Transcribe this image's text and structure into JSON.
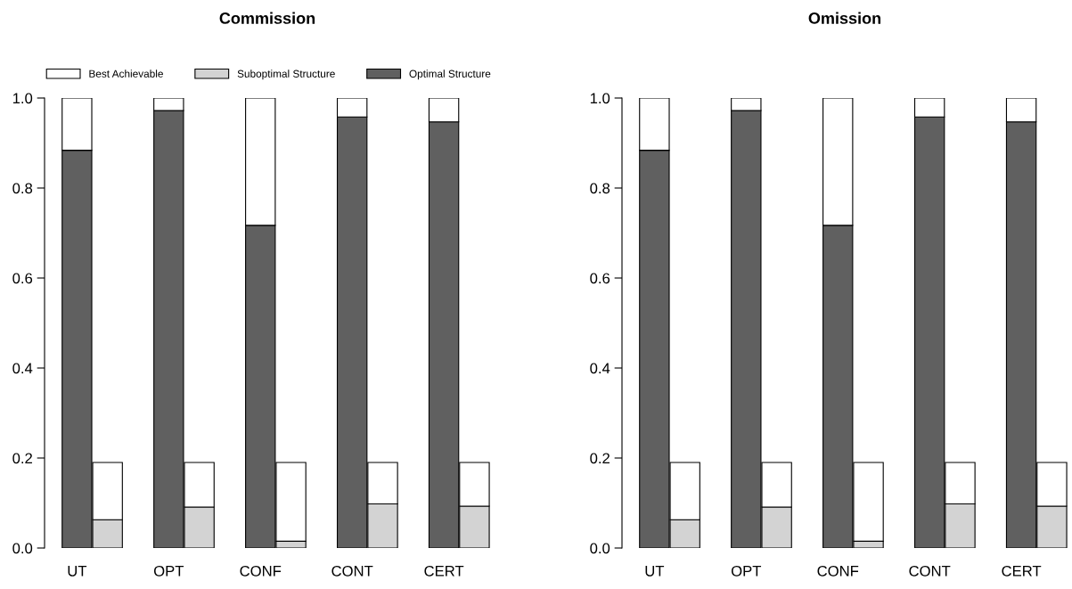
{
  "chart_data": [
    {
      "type": "bar",
      "title": "Commission",
      "stacked": true,
      "legend": "top",
      "grid": false,
      "categories": [
        "UT",
        null,
        null,
        "OPT",
        null,
        null,
        "CONF",
        null,
        null,
        "CONT",
        null,
        null,
        "CERT",
        null
      ],
      "series": [
        {
          "name": "Optimal Structure",
          "color": "#606060",
          "values": [
            0.884,
            null,
            null,
            0.972,
            null,
            null,
            0.717,
            null,
            null,
            0.958,
            null,
            null,
            0.947,
            null
          ]
        },
        {
          "name": "Suboptimal Structure",
          "color": "#d3d3d3",
          "values": [
            null,
            0.063,
            null,
            null,
            0.091,
            null,
            null,
            0.015,
            null,
            null,
            0.098,
            null,
            null,
            0.093
          ]
        },
        {
          "name": "Best Achievable",
          "color": "#ffffff",
          "values": [
            0.116,
            0.127,
            null,
            0.028,
            0.099,
            null,
            0.283,
            0.175,
            null,
            0.042,
            0.092,
            null,
            0.053,
            0.097
          ]
        }
      ],
      "ylim": [
        0,
        1
      ],
      "yticks": [
        {
          "value": 0,
          "label": "0.0"
        },
        {
          "value": 0.2,
          "label": "0.2"
        },
        {
          "value": 0.4,
          "label": "0.4"
        },
        {
          "value": 0.6,
          "label": "0.6"
        },
        {
          "value": 0.8,
          "label": "0.8"
        },
        {
          "value": 1,
          "label": "1.0"
        }
      ]
    },
    {
      "type": "bar",
      "title": "Omission",
      "stacked": true,
      "grid": false,
      "categories": [
        "UT",
        null,
        null,
        "OPT",
        null,
        null,
        "CONF",
        null,
        null,
        "CONT",
        null,
        null,
        "CERT",
        null
      ],
      "series": [
        {
          "color": "#606060",
          "values": [
            0.884,
            null,
            null,
            0.972,
            null,
            null,
            0.717,
            null,
            null,
            0.958,
            null,
            null,
            0.947,
            null
          ]
        },
        {
          "color": "#d3d3d3",
          "values": [
            null,
            0.063,
            null,
            null,
            0.091,
            null,
            null,
            0.015,
            null,
            null,
            0.098,
            null,
            null,
            0.093
          ]
        },
        {
          "color": "#ffffff",
          "values": [
            0.116,
            0.127,
            null,
            0.028,
            0.099,
            null,
            0.283,
            0.175,
            null,
            0.042,
            0.092,
            null,
            0.053,
            0.097
          ]
        }
      ],
      "ylim": [
        0,
        1
      ],
      "yticks": [
        {
          "value": 0,
          "label": "0.0"
        },
        {
          "value": 0.2,
          "label": "0.2"
        },
        {
          "value": 0.4,
          "label": "0.4"
        },
        {
          "value": 0.6,
          "label": "0.6"
        },
        {
          "value": 0.8,
          "label": "0.8"
        },
        {
          "value": 1,
          "label": "1.0"
        }
      ]
    }
  ]
}
